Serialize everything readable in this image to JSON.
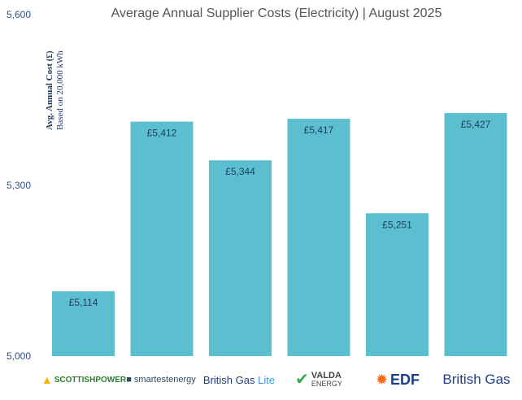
{
  "chart_data": {
    "type": "bar",
    "title": "Average Annual Supplier Costs (Electricity) | August 2025",
    "ylabel": "Avg. Annual Cost (£)",
    "ylabel_sub": "Based on 20,000 kWh",
    "ylim": [
      5000,
      5600
    ],
    "yticks": [
      5000,
      5300,
      5600
    ],
    "ytick_labels": [
      "5,000",
      "5,300",
      "5,600"
    ],
    "grid": false,
    "categories": [
      "ScottishPower",
      "Smartest Energy",
      "British Gas Lite",
      "Valda Energy",
      "EDF",
      "British Gas"
    ],
    "values": [
      5114,
      5412,
      5344,
      5417,
      5251,
      5427
    ],
    "data_labels": [
      "£5,114",
      "£5,412",
      "£5,344",
      "£5,417",
      "£5,251",
      "£5,427"
    ],
    "bar_color": "#5bbfcf"
  },
  "logos": {
    "scottishpower": "SCOTTISHPOWER",
    "smartest": "smartestenergy",
    "bgl_main": "British Gas",
    "bgl_lite": "Lite",
    "valda_top": "VALDA",
    "valda_bottom": "ENERGY",
    "edf": "EDF",
    "britishgas": "British Gas"
  }
}
